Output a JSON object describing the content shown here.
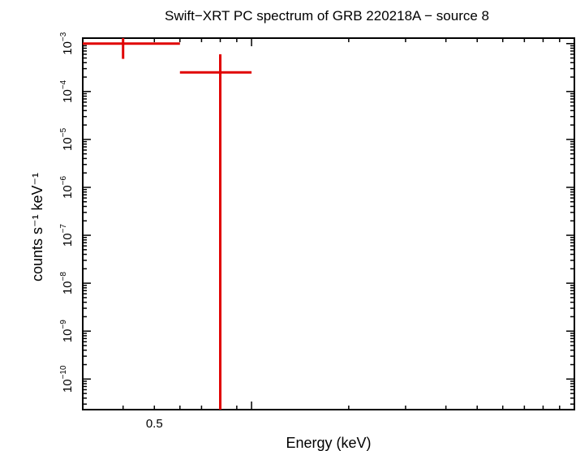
{
  "chart_data": {
    "type": "scatter",
    "title": "Swift−XRT PC spectrum of GRB 220218A − source 8",
    "xlabel": "Energy (keV)",
    "ylabel": "counts s⁻¹ keV⁻¹",
    "x_scale": "log",
    "y_scale": "log",
    "xlim": [
      0.3,
      10
    ],
    "ylim": [
      2.3e-11,
      0.0013
    ],
    "x_tick_labels": [
      "0.5"
    ],
    "x_tick_values": [
      0.5
    ],
    "y_tick_labels": [
      {
        "base": "10",
        "exp": "−10",
        "value": 1e-10
      },
      {
        "base": "10",
        "exp": "−9",
        "value": 1e-09
      },
      {
        "base": "10",
        "exp": "−8",
        "value": 1e-08
      },
      {
        "base": "10",
        "exp": "−7",
        "value": 1e-07
      },
      {
        "base": "10",
        "exp": "−6",
        "value": 1e-06
      },
      {
        "base": "10",
        "exp": "−5",
        "value": 1e-05
      },
      {
        "base": "10",
        "exp": "−4",
        "value": 0.0001
      },
      {
        "base": "10",
        "exp": "−3",
        "value": 0.001
      }
    ],
    "series": [
      {
        "color": "#e00000",
        "points": [
          {
            "x": 0.4,
            "x_lo": 0.3,
            "x_hi": 0.6,
            "y": 0.001,
            "y_lo": 0.00048,
            "y_hi": 0.0013
          },
          {
            "x": 0.8,
            "x_lo": 0.6,
            "x_hi": 1.0,
            "y": 0.00025,
            "y_lo": 2.3e-11,
            "y_hi": 0.0006
          }
        ]
      }
    ],
    "grid": false,
    "legend": "none"
  }
}
